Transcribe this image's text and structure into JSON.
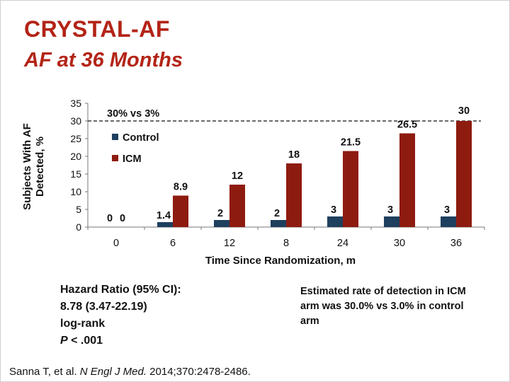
{
  "slide": {
    "title": "CRYSTAL-AF",
    "subtitle": "AF at 36 Months"
  },
  "chart_data": {
    "type": "bar",
    "categories": [
      "0",
      "6",
      "12",
      "8",
      "24",
      "30",
      "36"
    ],
    "series": [
      {
        "name": "Control",
        "color": "#1f3f5e",
        "values": [
          0,
          1.4,
          2,
          2,
          3,
          3,
          3
        ],
        "labels": [
          "0",
          "1.4",
          "2",
          "2",
          "3",
          "3",
          "3"
        ]
      },
      {
        "name": "ICM",
        "color": "#8e1b10",
        "values": [
          0,
          8.9,
          12,
          18,
          21.5,
          26.5,
          30
        ],
        "labels": [
          "0",
          "8.9",
          "12",
          "18",
          "21.5",
          "26.5",
          "30"
        ]
      }
    ],
    "xlabel": "Time Since Randomization, m",
    "ylabel_lines": [
      "Subjects With AF",
      "Detected, %"
    ],
    "ylim": [
      0,
      35
    ],
    "yticks": [
      "0",
      "5",
      "10",
      "15",
      "20",
      "25",
      "30",
      "35"
    ],
    "reference_line": {
      "value": 30,
      "label": "30% vs 3%",
      "style": "dashed"
    },
    "legend_position": "upper-left",
    "grid": false
  },
  "stats": {
    "line1": "Hazard Ratio (95% CI):",
    "line2": "8.78 (3.47-22.19)",
    "line3": "log-rank",
    "p_symbol": "P",
    "p_value": " < .001"
  },
  "note": {
    "text": "Estimated rate of detection in ICM arm was 30.0% vs 3.0% in control arm"
  },
  "citation": {
    "authors": "Sanna T, et al. ",
    "journal": "N Engl J Med.",
    "details": " 2014;370:2478-2486."
  }
}
